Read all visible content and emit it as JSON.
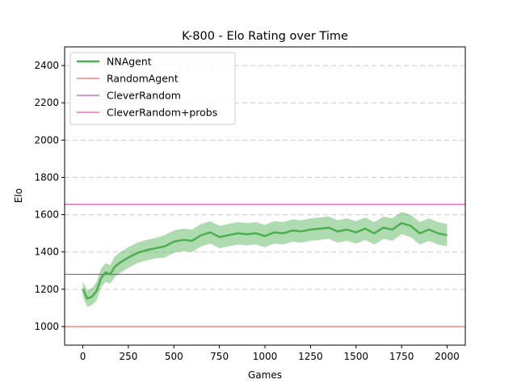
{
  "chart_data": {
    "type": "line",
    "title": "K-800 - Elo Rating over Time",
    "xlabel": "Games",
    "ylabel": "Elo",
    "xlim": [
      -100,
      2100
    ],
    "ylim": [
      900,
      2500
    ],
    "xticks": [
      0,
      250,
      500,
      750,
      1000,
      1250,
      1500,
      1750,
      2000
    ],
    "yticks": [
      1000,
      1200,
      1400,
      1600,
      1800,
      2000,
      2200,
      2400
    ],
    "grid": "y-dashed",
    "legend_position": "top-left",
    "series": [
      {
        "name": "NNAgent",
        "color": "#4caf50",
        "x": [
          0,
          25,
          50,
          75,
          100,
          125,
          150,
          175,
          200,
          250,
          300,
          350,
          400,
          450,
          500,
          550,
          600,
          650,
          700,
          750,
          800,
          850,
          900,
          950,
          1000,
          1050,
          1100,
          1150,
          1200,
          1250,
          1300,
          1350,
          1400,
          1450,
          1500,
          1550,
          1600,
          1650,
          1700,
          1750,
          1800,
          1850,
          1900,
          1950,
          2000
        ],
        "y": [
          1200,
          1150,
          1160,
          1190,
          1260,
          1290,
          1280,
          1320,
          1340,
          1370,
          1395,
          1410,
          1420,
          1430,
          1455,
          1465,
          1460,
          1490,
          1505,
          1480,
          1490,
          1500,
          1495,
          1500,
          1485,
          1505,
          1500,
          1515,
          1510,
          1520,
          1525,
          1530,
          1510,
          1520,
          1505,
          1525,
          1500,
          1530,
          1520,
          1555,
          1540,
          1500,
          1520,
          1500,
          1490
        ],
        "band": [
          40,
          45,
          45,
          50,
          50,
          50,
          50,
          55,
          55,
          55,
          55,
          55,
          55,
          60,
          60,
          60,
          60,
          60,
          60,
          60,
          60,
          60,
          60,
          60,
          60,
          60,
          60,
          60,
          60,
          60,
          60,
          60,
          60,
          60,
          60,
          60,
          60,
          60,
          60,
          60,
          60,
          60,
          60,
          60,
          60
        ]
      },
      {
        "name": "RandomAgent",
        "color": "#e8463c",
        "hline": 1000
      },
      {
        "name": "CleverRandom",
        "color": "#b425c4",
        "hline": 1280
      },
      {
        "name": "CleverRandom+probs",
        "color": "#e0259a",
        "hline": 1655
      }
    ]
  }
}
